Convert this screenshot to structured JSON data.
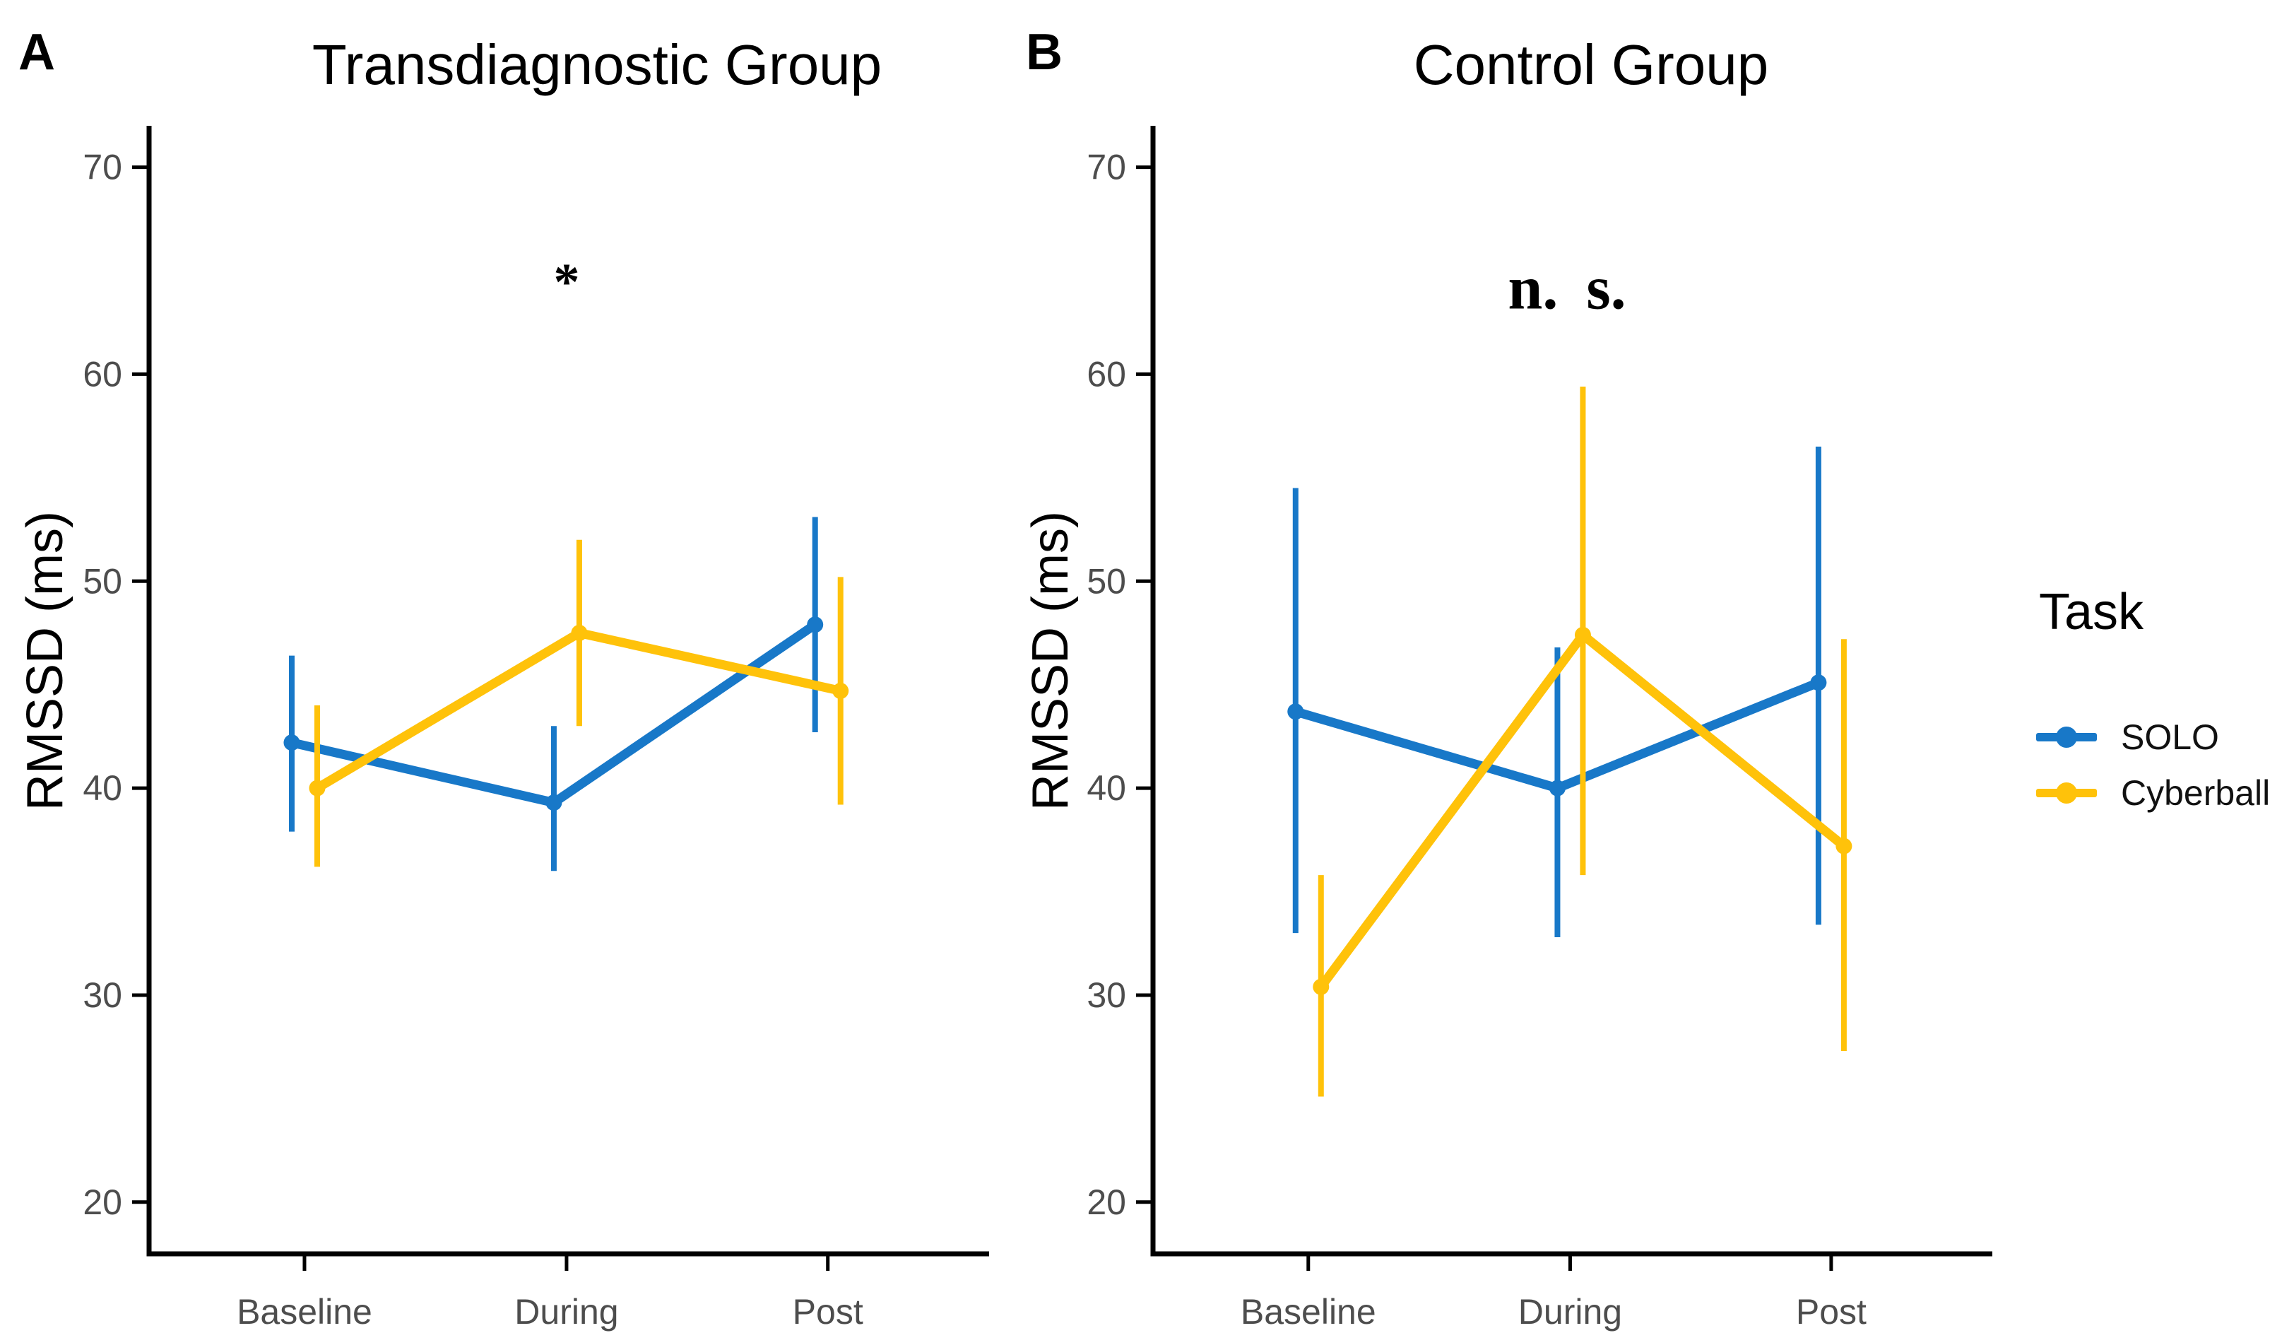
{
  "figure": {
    "legend": {
      "title": "Task",
      "items": [
        {
          "label": "SOLO",
          "color": "#1878C8"
        },
        {
          "label": "Cyberball",
          "color": "#FFC20A"
        }
      ]
    },
    "axis_text_color": "#4d4d4d",
    "axis_line_color": "#000000"
  },
  "chart_data": [
    {
      "type": "line",
      "panel_label": "A",
      "title": "Transdiagnostic Group",
      "ylabel": "RMSSD (ms)",
      "categories": [
        "Baseline",
        "During",
        "Post"
      ],
      "yticks": [
        20,
        30,
        40,
        50,
        60,
        70
      ],
      "ylim": [
        17.5,
        72
      ],
      "grid": false,
      "annotation": {
        "text": "*",
        "x_category": "During",
        "y": 65
      },
      "series": [
        {
          "name": "SOLO",
          "color": "#1878C8",
          "values": [
            42.2,
            39.3,
            47.9
          ],
          "err_low": [
            37.9,
            36.0,
            42.7
          ],
          "err_high": [
            46.4,
            43.0,
            53.1
          ]
        },
        {
          "name": "Cyberball",
          "color": "#FFC20A",
          "values": [
            40.0,
            47.5,
            44.7
          ],
          "err_low": [
            36.2,
            43.0,
            39.2
          ],
          "err_high": [
            44.0,
            52.0,
            50.2
          ]
        }
      ]
    },
    {
      "type": "line",
      "panel_label": "B",
      "title": "Control Group",
      "ylabel": "RMSSD (ms)",
      "categories": [
        "Baseline",
        "During",
        "Post"
      ],
      "yticks": [
        20,
        30,
        40,
        50,
        60,
        70
      ],
      "ylim": [
        17.5,
        72
      ],
      "grid": false,
      "annotation": {
        "text": "n. s.",
        "x_category": "During",
        "y": 64.2
      },
      "series": [
        {
          "name": "SOLO",
          "color": "#1878C8",
          "values": [
            43.7,
            40.0,
            45.1
          ],
          "err_low": [
            33.0,
            32.8,
            33.4
          ],
          "err_high": [
            54.5,
            46.8,
            56.5
          ]
        },
        {
          "name": "Cyberball",
          "color": "#FFC20A",
          "values": [
            30.4,
            47.4,
            37.2
          ],
          "err_low": [
            25.1,
            35.8,
            27.3
          ],
          "err_high": [
            35.8,
            59.4,
            47.2
          ]
        }
      ]
    }
  ]
}
